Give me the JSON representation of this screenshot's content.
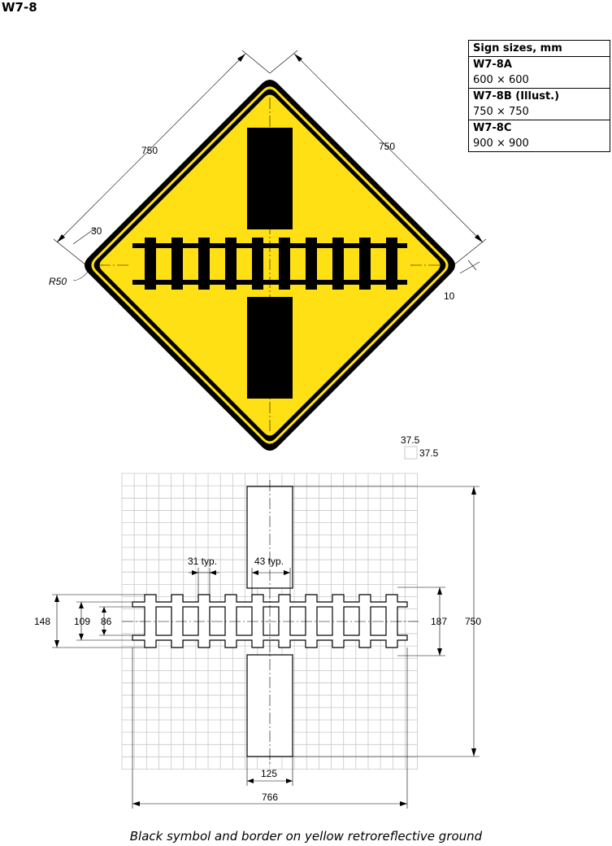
{
  "sign_code": "W7-8",
  "sign_sizes": {
    "title": "Sign sizes, mm",
    "rows": [
      {
        "label": "W7-8A",
        "value": "600 × 600"
      },
      {
        "label": "W7-8B (Illust.)",
        "value": "750 × 750"
      },
      {
        "label": "W7-8C",
        "value": "900 × 900"
      }
    ]
  },
  "sign_dims": {
    "side_left": "750",
    "side_right": "750",
    "border_offset": "30",
    "corner_radius": "R50",
    "border_width": "10"
  },
  "grid_dims": {
    "grid_size_a": "37.5",
    "grid_size_b": "37.5",
    "sleeper_width": "31 typ.",
    "sleeper_gap": "43 typ.",
    "rail_outer": "148",
    "rail_mid": "109",
    "rail_inner": "86",
    "sleeper_length": "187",
    "total_height": "750",
    "bar_width": "125",
    "total_width": "766"
  },
  "colors": {
    "ground": "#FFE014",
    "symbol": "#000000",
    "grid": "#c8c8c8"
  },
  "caption": "Black symbol and border on yellow retroreflective ground"
}
